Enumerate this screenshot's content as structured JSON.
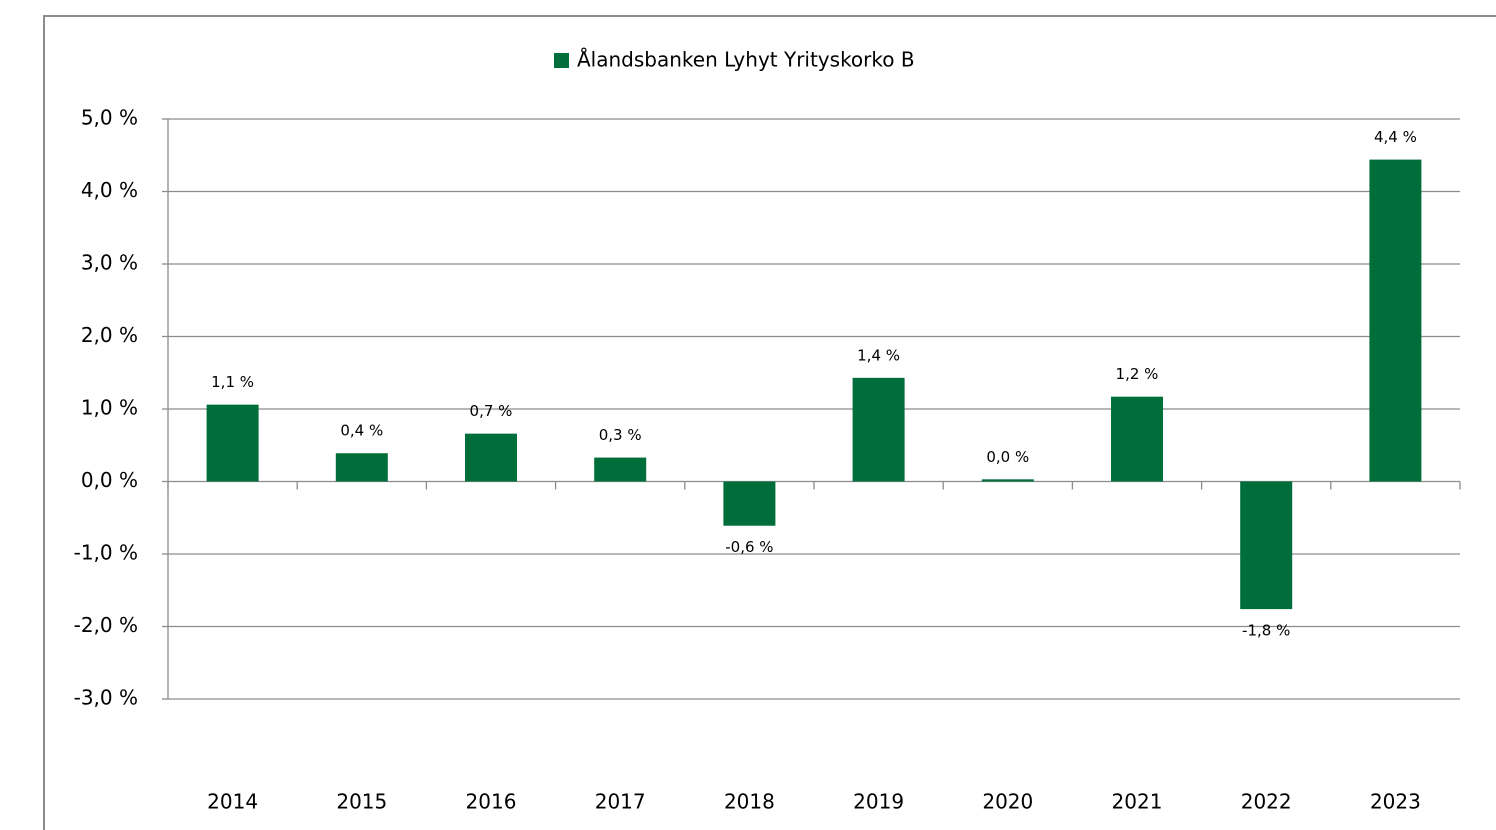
{
  "chart_data": {
    "type": "bar",
    "legend": "Ålandsbanken Lyhyt Yrityskorko B",
    "categories": [
      "2014",
      "2015",
      "2016",
      "2017",
      "2018",
      "2019",
      "2020",
      "2021",
      "2022",
      "2023"
    ],
    "values": [
      1.06,
      0.39,
      0.66,
      0.33,
      -0.61,
      1.43,
      0.03,
      1.17,
      -1.76,
      4.44
    ],
    "value_labels": [
      "1,1 %",
      "0,4 %",
      "0,7 %",
      "0,3 %",
      "-0,6 %",
      "1,4 %",
      "0,0 %",
      "1,2 %",
      "-1,8 %",
      "4,4 %"
    ],
    "color": "#006e3a",
    "ylim": [
      -3,
      5
    ],
    "yticks": [
      {
        "value": -3,
        "label": "-3,0 %"
      },
      {
        "value": -2,
        "label": "-2,0 %"
      },
      {
        "value": -1,
        "label": "-1,0 %"
      },
      {
        "value": 0,
        "label": "0,0 %"
      },
      {
        "value": 1,
        "label": "1,0 %"
      },
      {
        "value": 2,
        "label": "2,0 %"
      },
      {
        "value": 3,
        "label": "3,0 %"
      },
      {
        "value": 4,
        "label": "4,0 %"
      },
      {
        "value": 5,
        "label": "5,0 %"
      }
    ],
    "grid": true
  }
}
